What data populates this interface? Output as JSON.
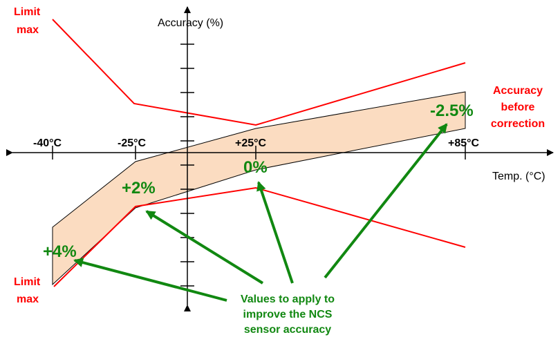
{
  "colors": {
    "limit": "#ff0000",
    "band_fill": "#fbdcc1",
    "band_stroke": "#000000",
    "correction": "#118811",
    "axis": "#000000"
  },
  "axes": {
    "y_title": "Accuracy (%)",
    "x_title": "Temp. (°C)",
    "x_ticks": [
      "-40°C",
      "-25°C",
      "+25°C",
      "+85°C"
    ]
  },
  "labels": {
    "limit_max_top_line1": "Limit",
    "limit_max_top_line2": "max",
    "limit_max_bottom_line1": "Limit",
    "limit_max_bottom_line2": "max",
    "accuracy_before_line1": "Accuracy",
    "accuracy_before_line2": "before",
    "accuracy_before_line3": "correction"
  },
  "corrections": [
    {
      "temp": "-40°C",
      "value": "+4%"
    },
    {
      "temp": "-25°C",
      "value": "+2%"
    },
    {
      "temp": "+25°C",
      "value": "0%"
    },
    {
      "temp": "+85°C",
      "value": "-2.5%"
    }
  ],
  "note": {
    "line1": "Values to apply to",
    "line2": "improve the NCS",
    "line3": "sensor accuracy"
  }
}
